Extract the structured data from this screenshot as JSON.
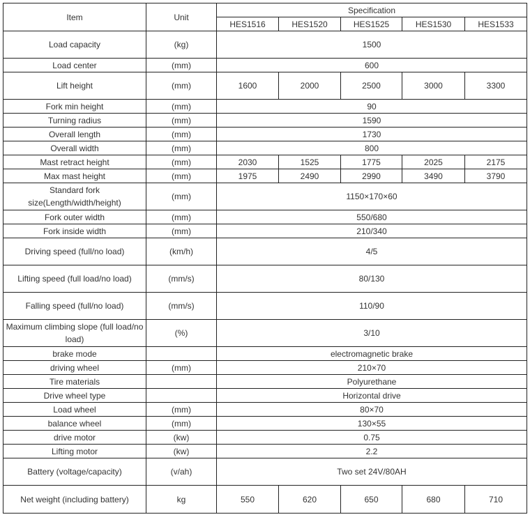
{
  "header": {
    "item": "Item",
    "unit": "Unit",
    "specification": "Specification",
    "models": [
      "HES1516",
      "HES1520",
      "HES1525",
      "HES1530",
      "HES1533"
    ]
  },
  "rows": [
    {
      "item": "Load capacity",
      "unit": "(kg)",
      "value": "1500",
      "tall": true
    },
    {
      "item": "Load center",
      "unit": "(mm)",
      "value": "600"
    },
    {
      "item": "Lift height",
      "unit": "(mm)",
      "values": [
        "1600",
        "2000",
        "2500",
        "3000",
        "3300"
      ],
      "tall": true
    },
    {
      "item": "Fork min height",
      "unit": "(mm)",
      "value": "90"
    },
    {
      "item": "Turning radius",
      "unit": "(mm)",
      "value": "1590"
    },
    {
      "item": "Overall length",
      "unit": "(mm)",
      "value": "1730"
    },
    {
      "item": "Overall width",
      "unit": "(mm)",
      "value": "800"
    },
    {
      "item": "Mast retract height",
      "unit": "(mm)",
      "values": [
        "2030",
        "1525",
        "1775",
        "2025",
        "2175"
      ]
    },
    {
      "item": "Max mast height",
      "unit": "(mm)",
      "values": [
        "1975",
        "2490",
        "2990",
        "3490",
        "3790"
      ]
    },
    {
      "item": "Standard fork size(Length/width/height)",
      "unit": "(mm)",
      "value": "1150×170×60",
      "tall": true
    },
    {
      "item": "Fork outer width",
      "unit": "(mm)",
      "value": "550/680"
    },
    {
      "item": "Fork inside width",
      "unit": "(mm)",
      "value": "210/340"
    },
    {
      "item": "Driving speed (full/no load)",
      "unit": "(km/h)",
      "value": "4/5",
      "tall": true
    },
    {
      "item": "Lifting speed (full load/no load)",
      "unit": "(mm/s)",
      "value": "80/130",
      "tall": true
    },
    {
      "item": "Falling speed (full/no load)",
      "unit": "(mm/s)",
      "value": "110/90",
      "tall": true
    },
    {
      "item": "Maximum climbing slope (full load/no load)",
      "unit": "(%)",
      "value": "3/10",
      "tall": true
    },
    {
      "item": "brake mode",
      "unit": "",
      "value": "electromagnetic brake"
    },
    {
      "item": "driving wheel",
      "unit": "(mm)",
      "value": "210×70"
    },
    {
      "item": "Tire materials",
      "unit": "",
      "value": "Polyurethane"
    },
    {
      "item": "Drive wheel type",
      "unit": "",
      "value": "Horizontal drive"
    },
    {
      "item": "Load wheel",
      "unit": "(mm)",
      "value": "80×70"
    },
    {
      "item": "balance wheel",
      "unit": "(mm)",
      "value": "130×55"
    },
    {
      "item": "drive motor",
      "unit": "(kw)",
      "value": "0.75"
    },
    {
      "item": "Lifting motor",
      "unit": "(kw)",
      "value": "2.2"
    },
    {
      "item": "Battery (voltage/capacity)",
      "unit": "(v/ah)",
      "value": "Two set  24V/80AH",
      "tall": true
    },
    {
      "item": "Net weight (including battery)",
      "unit": "kg",
      "values": [
        "550",
        "620",
        "650",
        "680",
        "710"
      ],
      "tall": true,
      "last": true
    }
  ]
}
